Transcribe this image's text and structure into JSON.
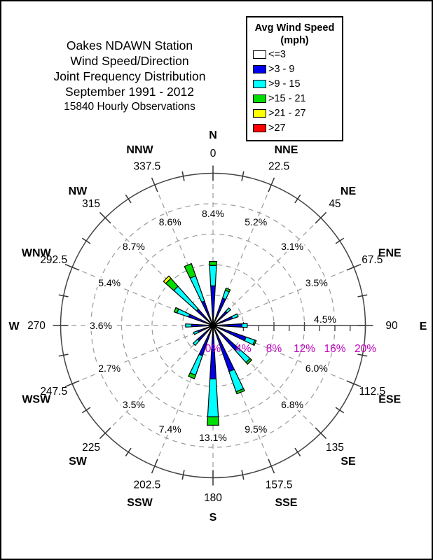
{
  "title": {
    "lines": [
      "Oakes NDAWN Station",
      "Wind Speed/Direction",
      "Joint Frequency Distribution",
      "September 1991 - 2012"
    ],
    "subtitle": "15840 Hourly Observations"
  },
  "legend": {
    "title_line1": "Avg Wind Speed",
    "title_line2": "(mph)",
    "items": [
      {
        "label": "<=3",
        "color": "#FFFFFF"
      },
      {
        "label": ">3 - 9",
        "color": "#0000EE"
      },
      {
        "label": ">9 - 15",
        "color": "#00FFFF"
      },
      {
        "label": ">15 - 21",
        "color": "#00DD00"
      },
      {
        "label": ">21 - 27",
        "color": "#FFFF00"
      },
      {
        "label": ">27",
        "color": "#FF0000"
      }
    ]
  },
  "chart_data": {
    "type": "wind-rose",
    "units": "percent of hourly observations",
    "speed_bins": [
      "<=3",
      ">3 - 9",
      ">9 - 15",
      ">15 - 21",
      ">21 - 27",
      ">27"
    ],
    "bin_colors": [
      "#FFFFFF",
      "#0000EE",
      "#00FFFF",
      "#00DD00",
      "#FFFF00",
      "#FF0000"
    ],
    "ring_percents": [
      4,
      8,
      12,
      16
    ],
    "outer_ring_percent": 20,
    "radial_axis": {
      "labels": [
        "0%",
        "4%",
        "8%",
        "12%",
        "16%",
        "20%"
      ],
      "values": [
        0,
        4,
        8,
        12,
        16,
        20
      ],
      "color": "#C000C0",
      "direction_deg": 90
    },
    "grid_color": "#999999",
    "directions": [
      {
        "name": "N",
        "deg_label": "0",
        "deg": 0,
        "total": 8.4,
        "total_label": "8.4%",
        "bins": [
          0,
          5.2,
          2.7,
          0.5,
          0,
          0
        ]
      },
      {
        "name": "NNE",
        "deg_label": "22.5",
        "deg": 22.5,
        "total": 5.2,
        "total_label": "5.2%",
        "bins": [
          0,
          3.8,
          1.1,
          0.3,
          0,
          0
        ]
      },
      {
        "name": "NE",
        "deg_label": "45",
        "deg": 45,
        "total": 3.1,
        "total_label": "3.1%",
        "bins": [
          0,
          2.5,
          0.6,
          0,
          0,
          0
        ]
      },
      {
        "name": "ENE",
        "deg_label": "67.5",
        "deg": 67.5,
        "total": 3.5,
        "total_label": "3.5%",
        "bins": [
          0,
          2.7,
          0.8,
          0,
          0,
          0
        ]
      },
      {
        "name": "E",
        "deg_label": "90",
        "deg": 90,
        "total": 4.5,
        "total_label": "4.5%",
        "bins": [
          0,
          3.8,
          0.7,
          0,
          0,
          0
        ]
      },
      {
        "name": "ESE",
        "deg_label": "112.5",
        "deg": 112.5,
        "total": 6.0,
        "total_label": "6.0%",
        "bins": [
          0,
          4.6,
          1.2,
          0.2,
          0,
          0
        ]
      },
      {
        "name": "SE",
        "deg_label": "135",
        "deg": 135,
        "total": 6.8,
        "total_label": "6.8%",
        "bins": [
          0,
          4.4,
          2.1,
          0.3,
          0,
          0
        ]
      },
      {
        "name": "SSE",
        "deg_label": "157.5",
        "deg": 157.5,
        "total": 9.5,
        "total_label": "9.5%",
        "bins": [
          0,
          6.4,
          2.8,
          0.3,
          0,
          0
        ]
      },
      {
        "name": "S",
        "deg_label": "180",
        "deg": 180,
        "total": 13.1,
        "total_label": "13.1%",
        "bins": [
          0,
          7.0,
          5.0,
          1.1,
          0,
          0
        ]
      },
      {
        "name": "SSW",
        "deg_label": "202.5",
        "deg": 202.5,
        "total": 7.4,
        "total_label": "7.4%",
        "bins": [
          0,
          4.2,
          2.7,
          0.5,
          0,
          0
        ]
      },
      {
        "name": "SW",
        "deg_label": "225",
        "deg": 225,
        "total": 3.5,
        "total_label": "3.5%",
        "bins": [
          0,
          2.7,
          0.8,
          0,
          0,
          0
        ]
      },
      {
        "name": "WSW",
        "deg_label": "247.5",
        "deg": 247.5,
        "total": 2.7,
        "total_label": "2.7%",
        "bins": [
          0,
          2.1,
          0.6,
          0,
          0,
          0
        ]
      },
      {
        "name": "W",
        "deg_label": "270",
        "deg": 270,
        "total": 3.6,
        "total_label": "3.6%",
        "bins": [
          0,
          2.8,
          0.8,
          0,
          0,
          0
        ]
      },
      {
        "name": "WNW",
        "deg_label": "292.5",
        "deg": 292.5,
        "total": 5.4,
        "total_label": "5.4%",
        "bins": [
          0,
          3.4,
          1.6,
          0.4,
          0,
          0
        ]
      },
      {
        "name": "NW",
        "deg_label": "315",
        "deg": 315,
        "total": 8.7,
        "total_label": "8.7%",
        "bins": [
          0,
          2.9,
          4.0,
          1.4,
          0.4,
          0
        ]
      },
      {
        "name": "NNW",
        "deg_label": "337.5",
        "deg": 337.5,
        "total": 8.6,
        "total_label": "8.6%",
        "bins": [
          0,
          3.4,
          3.5,
          1.7,
          0,
          0
        ]
      }
    ]
  }
}
